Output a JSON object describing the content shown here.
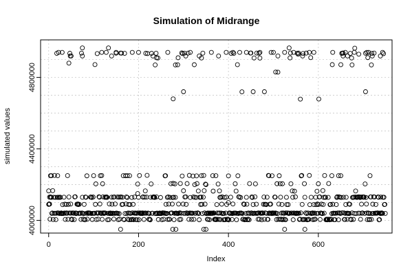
{
  "chart_data": {
    "type": "scatter",
    "title": "Simulation of Midrange",
    "xlabel": "Index",
    "ylabel": "simulated values",
    "xlim": [
      -18,
      764
    ],
    "ylim": [
      3929000,
      5010000
    ],
    "xticks": [
      0,
      200,
      400,
      600
    ],
    "xtick_labels": [
      "0",
      "200",
      "400",
      "600"
    ],
    "yticks": [
      4000000,
      4400000,
      4800000
    ],
    "ytick_labels": [
      "4000000",
      "4400000",
      "4800000"
    ],
    "grid": true,
    "point_style": "open-circle",
    "n_points": 750,
    "levels": [
      3950000,
      4005000,
      4040000,
      4090000,
      4130000,
      4165000,
      4205000,
      4250000,
      4680000,
      4720000,
      4830000,
      4870000,
      4910000,
      4935000,
      4965000
    ],
    "sample_points": [
      {
        "x": 0,
        "y": 4165000
      },
      {
        "x": 2,
        "y": 4130000
      },
      {
        "x": 4,
        "y": 4250000
      },
      {
        "x": 6,
        "y": 4250000
      },
      {
        "x": 20,
        "y": 4250000
      },
      {
        "x": 22,
        "y": 4940000
      },
      {
        "x": 30,
        "y": 4940000
      },
      {
        "x": 45,
        "y": 4880000
      },
      {
        "x": 48,
        "y": 4920000
      },
      {
        "x": 50,
        "y": 4920000
      },
      {
        "x": 75,
        "y": 4920000
      },
      {
        "x": 75,
        "y": 4965000
      },
      {
        "x": 100,
        "y": 4250000
      },
      {
        "x": 115,
        "y": 4250000
      },
      {
        "x": 118,
        "y": 4940000
      },
      {
        "x": 120,
        "y": 4205000
      },
      {
        "x": 128,
        "y": 4940000
      },
      {
        "x": 133,
        "y": 4965000
      },
      {
        "x": 140,
        "y": 4920000
      },
      {
        "x": 150,
        "y": 4940000
      },
      {
        "x": 160,
        "y": 3950000
      },
      {
        "x": 175,
        "y": 4250000
      },
      {
        "x": 180,
        "y": 4250000
      },
      {
        "x": 186,
        "y": 4940000
      },
      {
        "x": 198,
        "y": 4150000
      },
      {
        "x": 200,
        "y": 4940000
      },
      {
        "x": 210,
        "y": 4130000
      },
      {
        "x": 215,
        "y": 4165000
      },
      {
        "x": 232,
        "y": 4920000
      },
      {
        "x": 237,
        "y": 4870000
      },
      {
        "x": 240,
        "y": 4910000
      },
      {
        "x": 260,
        "y": 4250000
      },
      {
        "x": 265,
        "y": 4940000
      },
      {
        "x": 276,
        "y": 3950000
      },
      {
        "x": 277,
        "y": 4680000
      },
      {
        "x": 282,
        "y": 4870000
      },
      {
        "x": 283,
        "y": 3950000
      },
      {
        "x": 288,
        "y": 4910000
      },
      {
        "x": 300,
        "y": 4720000
      },
      {
        "x": 305,
        "y": 4920000
      },
      {
        "x": 315,
        "y": 4940000
      },
      {
        "x": 325,
        "y": 4200000
      },
      {
        "x": 335,
        "y": 4920000
      },
      {
        "x": 340,
        "y": 4250000
      },
      {
        "x": 345,
        "y": 3950000
      },
      {
        "x": 350,
        "y": 4200000
      },
      {
        "x": 362,
        "y": 4940000
      },
      {
        "x": 365,
        "y": 4250000
      },
      {
        "x": 372,
        "y": 4250000
      },
      {
        "x": 378,
        "y": 4920000
      },
      {
        "x": 380,
        "y": 4165000
      },
      {
        "x": 395,
        "y": 4940000
      },
      {
        "x": 400,
        "y": 4100000
      },
      {
        "x": 410,
        "y": 4940000
      },
      {
        "x": 415,
        "y": 4205000
      },
      {
        "x": 425,
        "y": 4940000
      },
      {
        "x": 440,
        "y": 4940000
      },
      {
        "x": 455,
        "y": 4720000
      },
      {
        "x": 470,
        "y": 4940000
      },
      {
        "x": 480,
        "y": 4720000
      },
      {
        "x": 490,
        "y": 4250000
      },
      {
        "x": 495,
        "y": 4940000
      },
      {
        "x": 500,
        "y": 4940000
      },
      {
        "x": 505,
        "y": 4830000
      },
      {
        "x": 510,
        "y": 4920000
      },
      {
        "x": 520,
        "y": 4205000
      },
      {
        "x": 525,
        "y": 4940000
      },
      {
        "x": 535,
        "y": 4965000
      },
      {
        "x": 545,
        "y": 4940000
      },
      {
        "x": 555,
        "y": 4930000
      },
      {
        "x": 565,
        "y": 4920000
      },
      {
        "x": 570,
        "y": 3950000
      },
      {
        "x": 580,
        "y": 4940000
      },
      {
        "x": 590,
        "y": 4940000
      },
      {
        "x": 600,
        "y": 4205000
      },
      {
        "x": 630,
        "y": 4250000
      },
      {
        "x": 632,
        "y": 4940000
      },
      {
        "x": 645,
        "y": 4250000
      },
      {
        "x": 650,
        "y": 4250000
      },
      {
        "x": 655,
        "y": 4920000
      },
      {
        "x": 660,
        "y": 4940000
      },
      {
        "x": 665,
        "y": 4920000
      },
      {
        "x": 675,
        "y": 4870000
      },
      {
        "x": 680,
        "y": 4940000
      },
      {
        "x": 690,
        "y": 4930000
      },
      {
        "x": 705,
        "y": 4720000
      },
      {
        "x": 708,
        "y": 4940000
      },
      {
        "x": 712,
        "y": 4940000
      },
      {
        "x": 715,
        "y": 4250000
      },
      {
        "x": 718,
        "y": 4870000
      },
      {
        "x": 720,
        "y": 4920000
      },
      {
        "x": 738,
        "y": 4920000
      },
      {
        "x": 743,
        "y": 4940000
      }
    ]
  }
}
